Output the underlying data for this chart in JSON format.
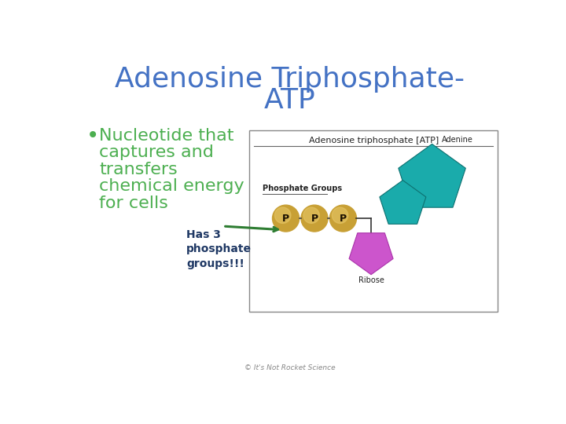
{
  "title_line1": "Adenosine Triphosphate-",
  "title_line2": "ATP",
  "title_color": "#4472C4",
  "bullet_text_lines": [
    "Nucleotide that",
    "captures and",
    "transfers",
    "chemical energy",
    "for cells"
  ],
  "bullet_color": "#4CAF50",
  "bullet_dot_color": "#4CAF50",
  "annotation_text": "Has 3\nphosphate\ngroups!!!",
  "annotation_color": "#1F3864",
  "annotation_fontsize": 10,
  "arrow_color": "#2E7D32",
  "footer_text": "© It's Not Rocket Science",
  "footer_color": "#888888",
  "background_color": "#FFFFFF",
  "title_fontsize": 26,
  "bullet_fontsize": 16,
  "diagram_title": "Adenosine triphosphate [ATP]",
  "phosphate_label": "Phosphate Groups",
  "adenine_label": "Adenine",
  "ribose_label": "Ribose",
  "phosphate_color": "#C8A035",
  "phosphate_highlight": "#E8C96A",
  "adenine_color": "#1AABAB",
  "adenine_dark": "#0D7070",
  "ribose_color": "#CC55CC",
  "diagram_box_color": "#888888",
  "diagram_bg": "#FFFFFF",
  "connector_color": "#333333",
  "label_color": "#222222"
}
